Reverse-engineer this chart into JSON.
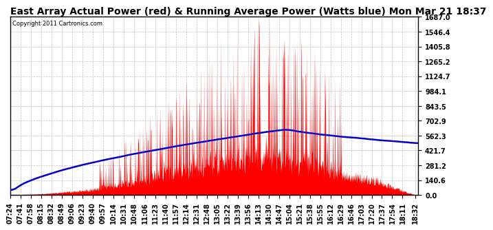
{
  "title": "East Array Actual Power (red) & Running Average Power (Watts blue) Mon Mar 21 18:37",
  "copyright": "Copyright 2011 Cartronics.com",
  "ylabel_ticks": [
    0.0,
    140.6,
    281.2,
    421.7,
    562.3,
    702.9,
    843.5,
    984.1,
    1124.7,
    1265.2,
    1405.8,
    1546.4,
    1687.0
  ],
  "ymax": 1687.0,
  "ymin": 0.0,
  "x_labels": [
    "07:24",
    "07:41",
    "07:58",
    "08:15",
    "08:32",
    "08:49",
    "09:06",
    "09:23",
    "09:40",
    "09:57",
    "10:14",
    "10:31",
    "10:48",
    "11:06",
    "11:23",
    "11:40",
    "11:57",
    "12:14",
    "12:31",
    "12:48",
    "13:05",
    "13:22",
    "13:39",
    "13:56",
    "14:13",
    "14:30",
    "14:47",
    "15:04",
    "15:21",
    "15:38",
    "15:55",
    "16:12",
    "16:29",
    "16:46",
    "17:03",
    "17:20",
    "17:37",
    "17:54",
    "18:11",
    "18:32"
  ],
  "bg_color": "#ffffff",
  "plot_bg_color": "#ffffff",
  "grid_color": "#bbbbbb",
  "fill_color": "#ff0000",
  "line_color": "#0000cc",
  "title_fontsize": 10,
  "tick_fontsize": 7
}
